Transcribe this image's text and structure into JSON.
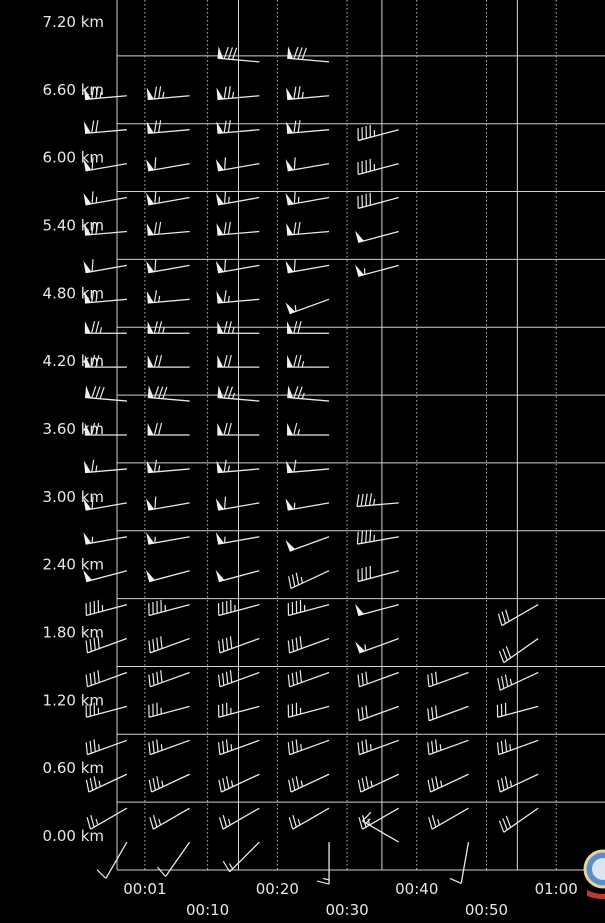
{
  "chart_data": {
    "type": "wind-barb-profile",
    "title": "",
    "xlabel": "",
    "ylabel": "",
    "y_unit": "km",
    "y_ticks": [
      "0.00 km",
      "0.60 km",
      "1.20 km",
      "1.80 km",
      "2.40 km",
      "3.00 km",
      "3.60 km",
      "4.20 km",
      "4.80 km",
      "5.40 km",
      "6.00 km",
      "6.60 km",
      "7.20 km"
    ],
    "y_tick_values": [
      0,
      0.6,
      1.2,
      1.8,
      2.4,
      3.0,
      3.6,
      4.2,
      4.8,
      5.4,
      6.0,
      6.6,
      7.2
    ],
    "y_range": [
      -0.3,
      7.5
    ],
    "x_ticks": [
      "00:01",
      "00:10",
      "00:20",
      "00:30",
      "00:40",
      "00:50",
      "01:00"
    ],
    "x_tick_minutes": [
      1,
      10,
      20,
      30,
      40,
      50,
      60
    ],
    "x_range_minutes": [
      -3,
      67
    ],
    "grid": true,
    "heights_km": [
      0,
      0.3,
      0.6,
      0.9,
      1.2,
      1.5,
      1.8,
      2.1,
      2.4,
      2.7,
      3.0,
      3.3,
      3.6,
      3.9,
      4.2,
      4.5,
      4.8,
      5.1,
      5.4,
      5.7,
      6.0,
      6.3,
      6.6,
      6.9
    ],
    "series": [
      {
        "time": "00:01",
        "x_min": 1,
        "start_km": 0.0,
        "speeds_kt": [
          10,
          25,
          35,
          35,
          35,
          40,
          40,
          45,
          50,
          55,
          60,
          65,
          70,
          80,
          70,
          75,
          65,
          60,
          70,
          65,
          60,
          70,
          75
        ],
        "directions_deg": [
          210,
          240,
          245,
          250,
          255,
          250,
          250,
          255,
          255,
          260,
          260,
          265,
          270,
          275,
          270,
          270,
          265,
          260,
          265,
          260,
          260,
          265,
          265
        ]
      },
      {
        "time": "00:10",
        "x_min": 10,
        "start_km": 0.0,
        "speeds_kt": [
          10,
          25,
          35,
          35,
          35,
          40,
          40,
          45,
          50,
          55,
          60,
          65,
          70,
          80,
          70,
          75,
          65,
          60,
          70,
          65,
          60,
          70,
          75
        ],
        "directions_deg": [
          215,
          240,
          245,
          250,
          255,
          250,
          250,
          255,
          255,
          260,
          260,
          265,
          270,
          275,
          270,
          270,
          265,
          260,
          265,
          260,
          260,
          265,
          265
        ]
      },
      {
        "time": "00:20",
        "x_min": 20,
        "start_km": 0.0,
        "speeds_kt": [
          15,
          25,
          35,
          35,
          35,
          40,
          40,
          45,
          50,
          55,
          60,
          65,
          70,
          75,
          70,
          75,
          65,
          60,
          70,
          65,
          60,
          70,
          75,
          80
        ],
        "directions_deg": [
          225,
          240,
          245,
          250,
          255,
          250,
          250,
          255,
          255,
          260,
          260,
          265,
          270,
          275,
          270,
          270,
          265,
          260,
          265,
          260,
          260,
          265,
          265,
          275
        ]
      },
      {
        "time": "00:30",
        "x_min": 30,
        "start_km": 0.0,
        "speeds_kt": [
          15,
          25,
          35,
          35,
          35,
          40,
          40,
          45,
          35,
          50,
          55,
          60,
          65,
          75,
          75,
          70,
          55,
          60,
          70,
          65,
          60,
          70,
          75,
          80
        ],
        "directions_deg": [
          180,
          240,
          245,
          250,
          255,
          250,
          250,
          255,
          245,
          250,
          260,
          265,
          270,
          275,
          270,
          270,
          250,
          260,
          265,
          260,
          260,
          265,
          265,
          275
        ]
      },
      {
        "time": "00:40",
        "x_min": 40,
        "start_km": 0.0,
        "speeds_kt": [
          15,
          25,
          35,
          35,
          30,
          30,
          55,
          50,
          40,
          45,
          45
        ],
        "directions_deg": [
          300,
          240,
          245,
          250,
          250,
          250,
          250,
          255,
          255,
          260,
          265
        ],
        "upper": {
          "start_km": 5.1,
          "speeds_kt": [
            55,
            50,
            40,
            45,
            45
          ]
        }
      },
      {
        "time": "00:50",
        "x_min": 50,
        "start_km": 0.0,
        "speeds_kt": [
          10,
          25,
          35,
          35,
          30,
          30
        ],
        "directions_deg": [
          190,
          240,
          245,
          250,
          250,
          250
        ]
      },
      {
        "time": "01:00",
        "x_min": 60,
        "start_km": 0.3,
        "speeds_kt": [
          30,
          35,
          35,
          30,
          35,
          30,
          30
        ],
        "directions_deg": [
          235,
          245,
          250,
          255,
          245,
          235,
          240
        ]
      }
    ]
  }
}
